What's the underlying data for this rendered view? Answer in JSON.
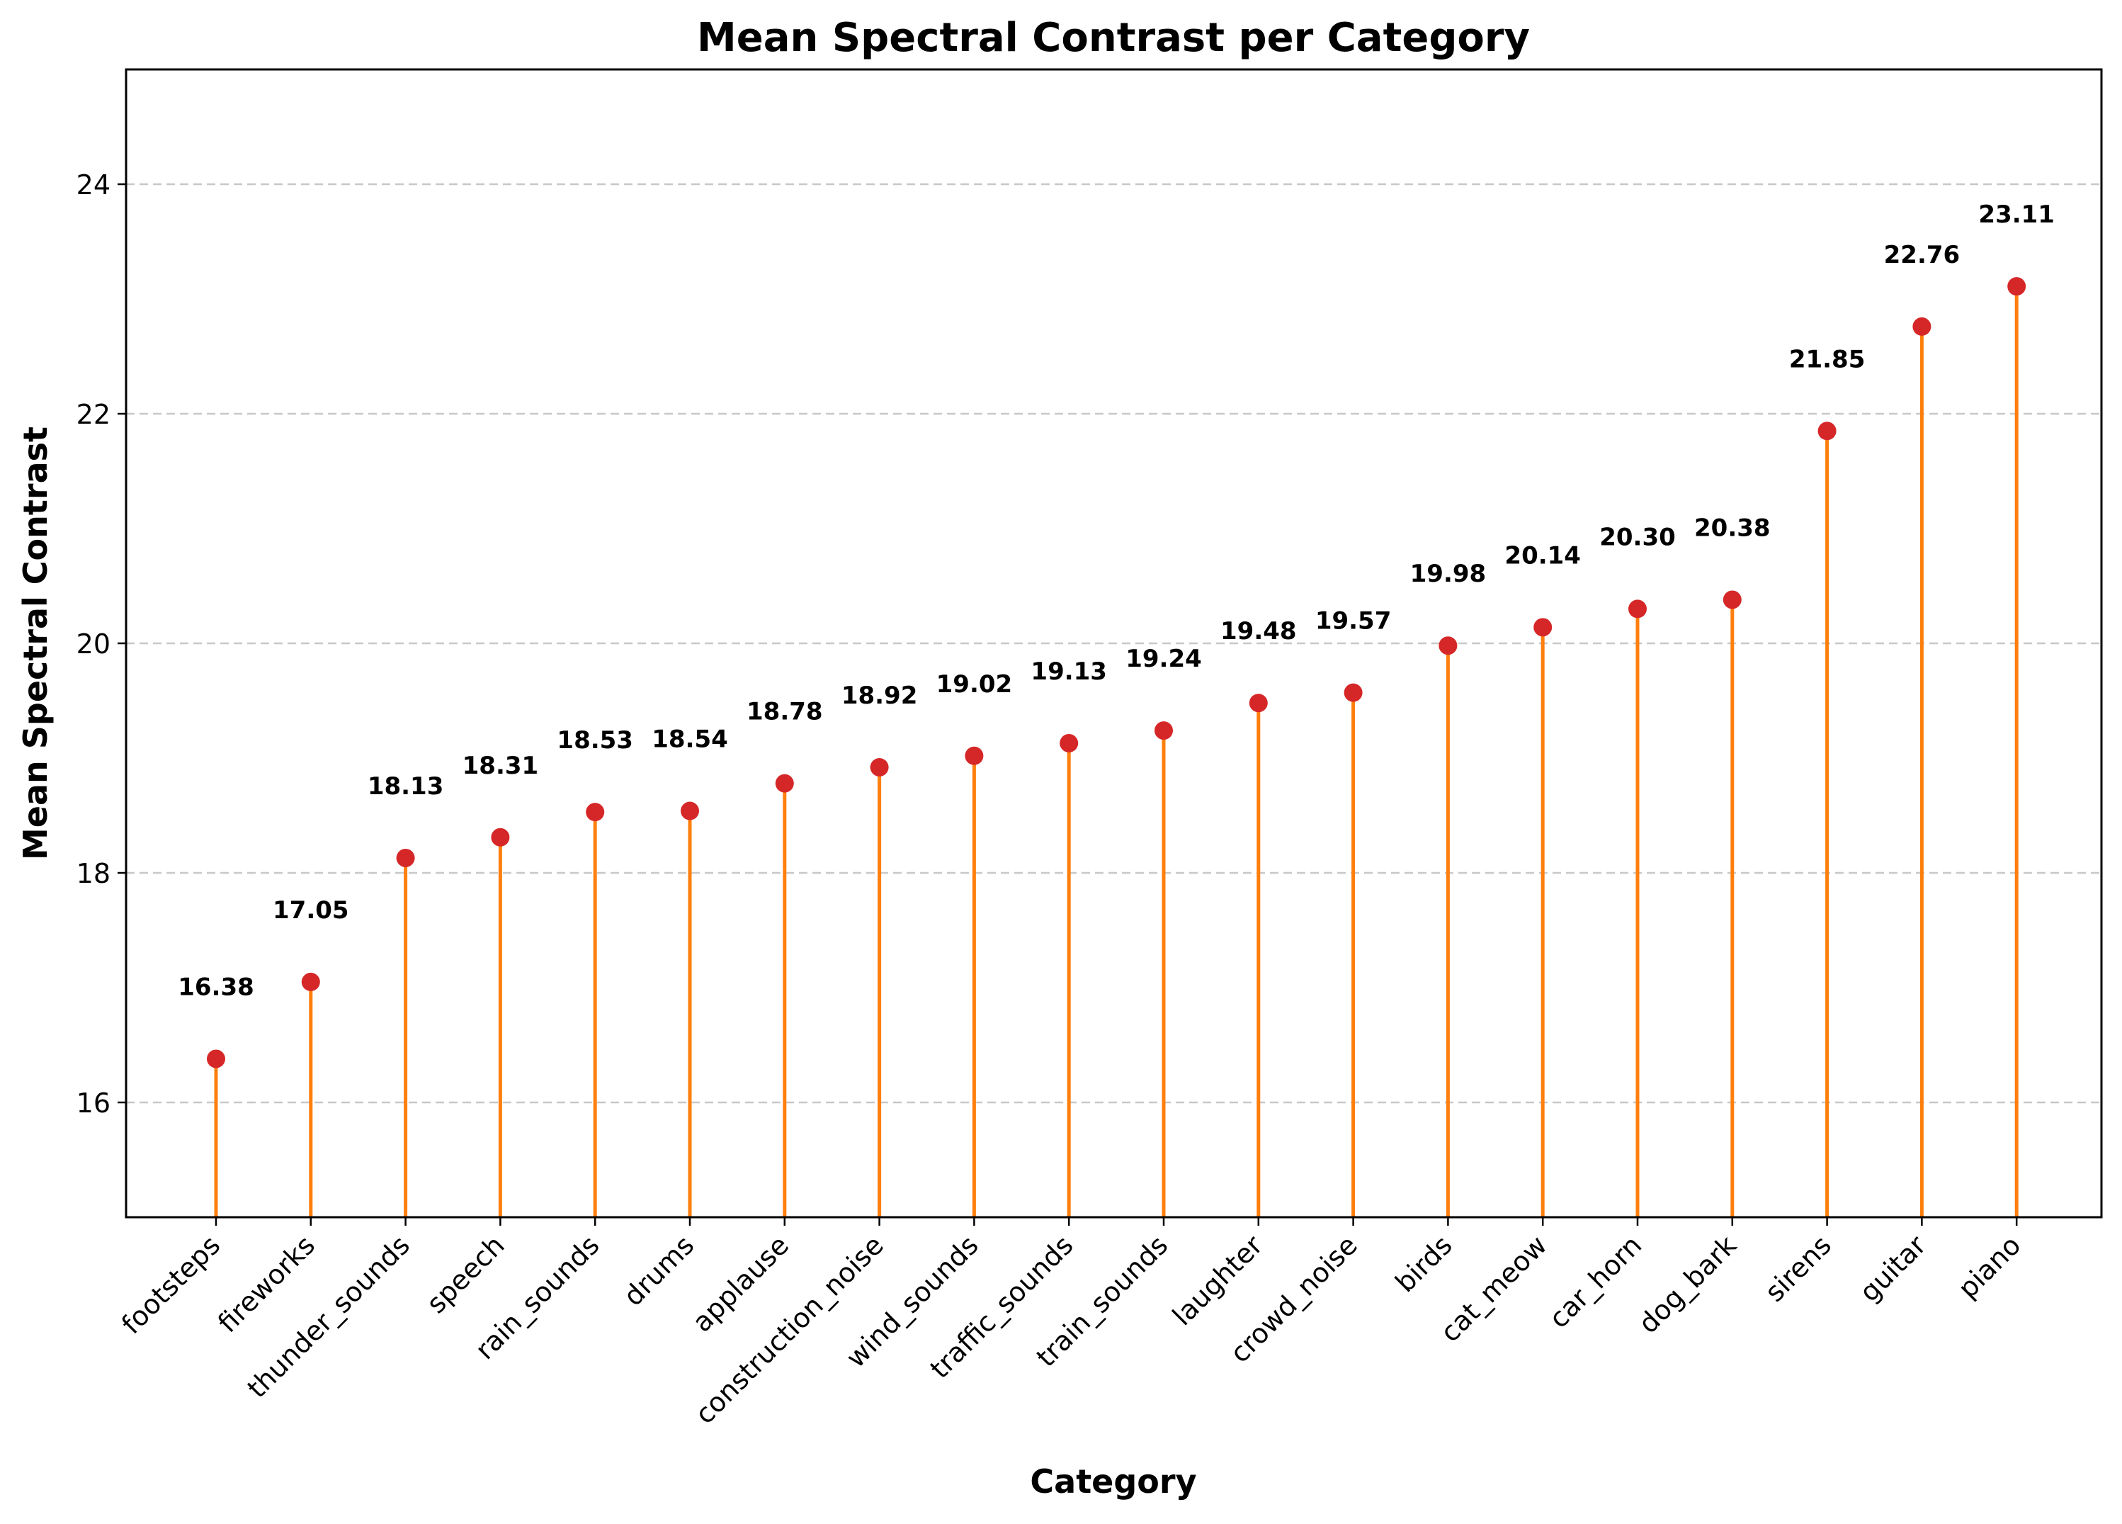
{
  "chart_data": {
    "type": "lollipop",
    "title": "Mean Spectral Contrast per Category",
    "xlabel": "Category",
    "ylabel": "Mean Spectral Contrast",
    "ylim": [
      15,
      25
    ],
    "yticks": [
      16,
      18,
      20,
      22,
      24
    ],
    "grid": "y-dashed",
    "categories": [
      "footsteps",
      "fireworks",
      "thunder_sounds",
      "speech",
      "rain_sounds",
      "drums",
      "applause",
      "construction_noise",
      "wind_sounds",
      "traffic_sounds",
      "train_sounds",
      "laughter",
      "crowd_noise",
      "birds",
      "cat_meow",
      "car_horn",
      "dog_bark",
      "sirens",
      "guitar",
      "piano"
    ],
    "values": [
      16.38,
      17.05,
      18.13,
      18.31,
      18.53,
      18.54,
      18.78,
      18.92,
      19.02,
      19.13,
      19.24,
      19.48,
      19.57,
      19.98,
      20.14,
      20.3,
      20.38,
      21.85,
      22.76,
      23.11
    ],
    "value_labels": [
      "16.38",
      "17.05",
      "18.13",
      "18.31",
      "18.53",
      "18.54",
      "18.78",
      "18.92",
      "19.02",
      "19.13",
      "19.24",
      "19.48",
      "19.57",
      "19.98",
      "20.14",
      "20.30",
      "20.38",
      "21.85",
      "22.76",
      "23.11"
    ],
    "colors": {
      "stem": "#ff7f0e",
      "marker": "#d62728",
      "grid": "#c8c8c8",
      "text": "#000000"
    }
  }
}
